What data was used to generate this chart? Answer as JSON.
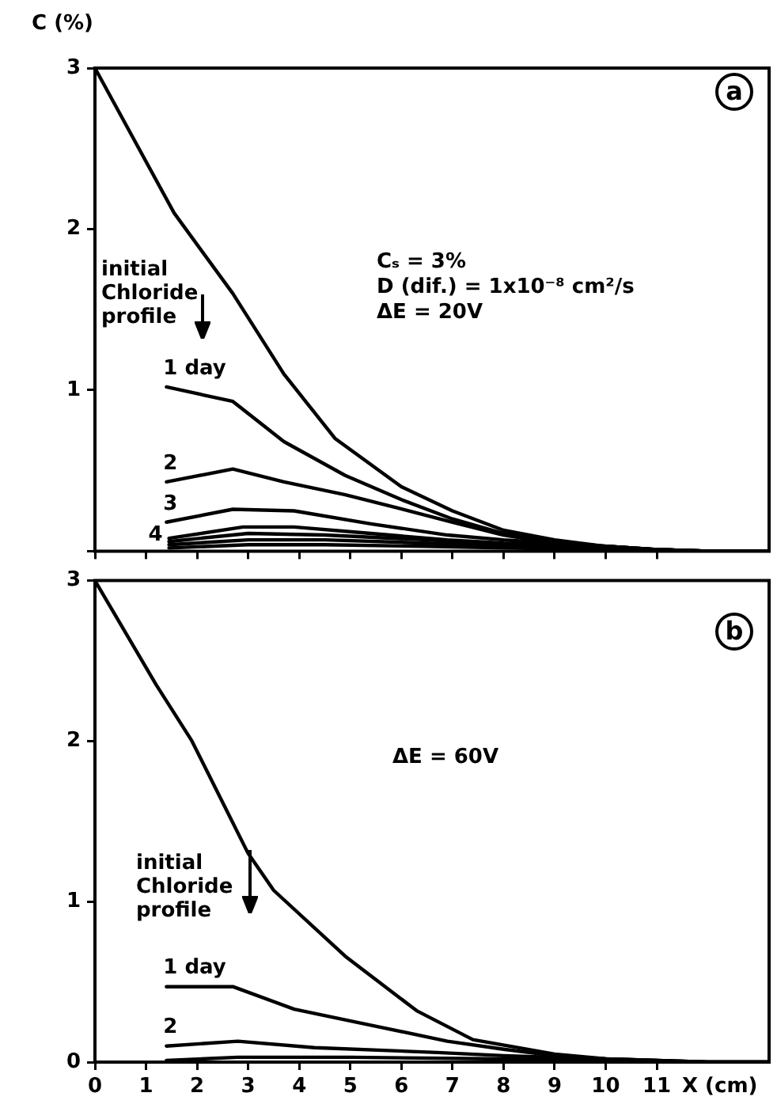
{
  "chart_data": [
    {
      "type": "line",
      "ylabel": "C (%)",
      "xlim": [
        0,
        13.2
      ],
      "ylim": [
        0,
        3
      ],
      "xticks": [
        {
          "value": 0,
          "label": null
        },
        {
          "value": 1,
          "label": null
        },
        {
          "value": 2,
          "label": null
        },
        {
          "value": 3,
          "label": null
        },
        {
          "value": 4,
          "label": null
        },
        {
          "value": 5,
          "label": null
        },
        {
          "value": 6,
          "label": null
        },
        {
          "value": 7,
          "label": null
        },
        {
          "value": 8,
          "label": null
        },
        {
          "value": 9,
          "label": null
        },
        {
          "value": 10,
          "label": null
        },
        {
          "value": 11,
          "label": null
        }
      ],
      "yticks": [
        {
          "value": 0,
          "label": null
        },
        1,
        2,
        3
      ],
      "tick_labels": "y",
      "grid": false,
      "marker": "none",
      "line_style": "solid",
      "annotations": [
        "a",
        "Cₛ = 3%",
        "D (dif.) = 1x10⁻⁸ cm²/s",
        "ΔE = 20V",
        "initial Chloride profile"
      ],
      "series": [
        {
          "color": "#000000",
          "x": [
            0,
            1.55,
            2.7,
            3.7,
            4.7,
            6,
            7,
            8,
            9,
            10,
            11,
            12,
            13.2
          ],
          "values": [
            3,
            2.1,
            1.6,
            1.1,
            0.7,
            0.4,
            0.25,
            0.13,
            0.07,
            0.03,
            0.01,
            0,
            0
          ]
        },
        {
          "name": "1 day",
          "color": "#000000",
          "x": [
            1.4,
            2.7,
            3.7,
            4.9,
            6,
            7,
            8,
            9,
            10,
            11,
            12,
            13.2
          ],
          "values": [
            1.02,
            0.93,
            0.68,
            0.47,
            0.32,
            0.2,
            0.11,
            0.06,
            0.03,
            0.01,
            0,
            0
          ]
        },
        {
          "name": "2",
          "color": "#000000",
          "x": [
            1.4,
            2.7,
            3.7,
            4.9,
            5.9,
            7,
            8,
            9,
            10,
            11,
            12,
            13.2
          ],
          "values": [
            0.43,
            0.51,
            0.43,
            0.35,
            0.27,
            0.18,
            0.1,
            0.05,
            0.03,
            0.01,
            0,
            0
          ]
        },
        {
          "name": "3",
          "color": "#000000",
          "x": [
            1.4,
            2.7,
            3.9,
            5.4,
            6.9,
            8,
            9,
            10,
            11,
            12,
            13.2
          ],
          "values": [
            0.18,
            0.26,
            0.25,
            0.17,
            0.1,
            0.07,
            0.05,
            0.03,
            0.01,
            0,
            0
          ]
        },
        {
          "name": "4",
          "color": "#000000",
          "x": [
            1.45,
            2.9,
            3.9,
            5.4,
            6.9,
            8,
            9,
            10,
            11,
            12,
            13.2
          ],
          "values": [
            0.08,
            0.15,
            0.15,
            0.11,
            0.07,
            0.05,
            0.04,
            0.02,
            0.01,
            0,
            0
          ]
        },
        {
          "color": "#000000",
          "x": [
            1.45,
            3,
            4.5,
            6.5,
            8,
            10,
            12,
            13.2
          ],
          "values": [
            0.06,
            0.11,
            0.1,
            0.07,
            0.04,
            0.02,
            0,
            0
          ]
        },
        {
          "color": "#000000",
          "x": [
            1.45,
            3,
            4.5,
            6.5,
            8,
            10,
            12,
            13.2
          ],
          "values": [
            0.04,
            0.07,
            0.07,
            0.05,
            0.03,
            0.02,
            0,
            0
          ]
        },
        {
          "color": "#000000",
          "x": [
            1.45,
            3,
            4.5,
            6.5,
            8,
            10,
            12,
            13.2
          ],
          "values": [
            0.02,
            0.04,
            0.04,
            0.03,
            0.02,
            0.01,
            0,
            0
          ]
        }
      ]
    },
    {
      "type": "line",
      "xlabel": "X (cm)",
      "xlim": [
        0,
        13.2
      ],
      "ylim": [
        0,
        3
      ],
      "xticks": [
        0,
        1,
        2,
        3,
        4,
        5,
        6,
        7,
        8,
        9,
        10,
        11
      ],
      "yticks": [
        0,
        1,
        2,
        3
      ],
      "grid": false,
      "marker": "none",
      "line_style": "solid",
      "annotations": [
        "b",
        "ΔE = 60V",
        "initial Chloride profile"
      ],
      "series": [
        {
          "color": "#000000",
          "x": [
            0,
            1.2,
            1.9,
            3,
            3.5,
            4.9,
            6.3,
            7.4,
            9,
            10,
            11,
            12,
            13.2
          ],
          "values": [
            3,
            2.35,
            2,
            1.3,
            1.07,
            0.66,
            0.32,
            0.14,
            0.05,
            0.02,
            0.01,
            0,
            0
          ]
        },
        {
          "name": "1 day",
          "color": "#000000",
          "x": [
            1.4,
            2.7,
            3.9,
            5.4,
            6.9,
            8,
            9,
            10,
            11,
            12,
            13.2
          ],
          "values": [
            0.47,
            0.47,
            0.33,
            0.23,
            0.13,
            0.08,
            0.04,
            0.02,
            0.01,
            0,
            0
          ]
        },
        {
          "name": "2",
          "color": "#000000",
          "x": [
            1.4,
            2.8,
            4.3,
            6.7,
            8,
            9,
            10,
            11,
            12,
            13.2
          ],
          "values": [
            0.1,
            0.13,
            0.09,
            0.06,
            0.04,
            0.03,
            0.02,
            0.01,
            0,
            0
          ]
        },
        {
          "color": "#000000",
          "x": [
            1.4,
            2.8,
            5,
            8,
            10,
            12,
            13.2
          ],
          "values": [
            0.01,
            0.03,
            0.03,
            0.02,
            0.01,
            0,
            0
          ]
        }
      ]
    }
  ]
}
